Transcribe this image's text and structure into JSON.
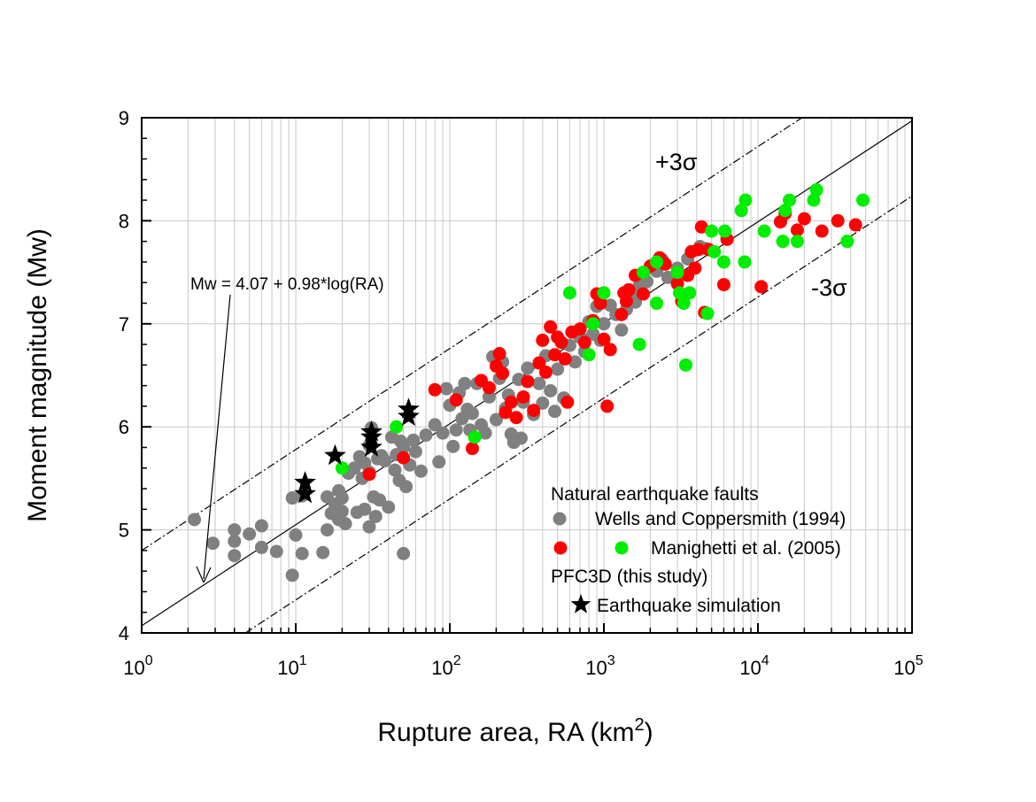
{
  "chart_data": {
    "type": "scatter",
    "xscale": "log",
    "xlim": [
      1,
      100000
    ],
    "ylim": [
      4,
      9
    ],
    "xlabel": "Rupture area, RA (km",
    "xlabel_sup": "2",
    "xlabel_end": ")",
    "ylabel": "Moment magnitude (Mw)",
    "x_ticks": [
      "10",
      "10",
      "10",
      "10",
      "10",
      "10"
    ],
    "x_tick_exponents": [
      "0",
      "1",
      "2",
      "3",
      "4",
      "5"
    ],
    "y_ticks": [
      "4",
      "5",
      "6",
      "7",
      "8",
      "9"
    ],
    "grid": true,
    "legend_position": "bottom-right",
    "legend": {
      "header1": "Natural earthquake faults",
      "wells": "Wells and Coppersmith (1994)",
      "manighetti": "Manighetti et al. (2005)",
      "header2": "PFC3D (this study)",
      "pfc": "Earthquake simulation"
    },
    "annotations": {
      "equation": "Mw = 4.07 + 0.98*log(RA)",
      "plus_sigma": "+3σ",
      "minus_sigma": "-3σ"
    },
    "lines": {
      "fit": {
        "intercept": 4.07,
        "slope": 0.98
      },
      "upper": {
        "intercept": 4.8,
        "slope": 0.98
      },
      "lower": {
        "intercept": 3.34,
        "slope": 0.98
      }
    },
    "colors": {
      "wells": "#808080",
      "manighetti_red": "#ff0000",
      "manighetti_green": "#00ee00",
      "pfc": "#000000"
    },
    "series": [
      {
        "name": "Wells and Coppersmith (1994)",
        "marker": "circle",
        "color": "#808080",
        "points": [
          [
            2.2,
            5.1
          ],
          [
            2.9,
            4.87
          ],
          [
            4,
            4.75
          ],
          [
            4,
            4.89
          ],
          [
            4,
            5.0
          ],
          [
            5,
            4.96
          ],
          [
            6,
            4.83
          ],
          [
            6,
            5.04
          ],
          [
            7.5,
            4.79
          ],
          [
            9.5,
            4.56
          ],
          [
            10,
            4.95
          ],
          [
            9.5,
            5.31
          ],
          [
            11,
            4.77
          ],
          [
            11,
            5.33
          ],
          [
            15,
            4.78
          ],
          [
            16,
            5.0
          ],
          [
            16,
            5.32
          ],
          [
            17,
            5.16
          ],
          [
            18,
            5.25
          ],
          [
            19,
            5.1
          ],
          [
            19,
            5.38
          ],
          [
            20,
            5.18
          ],
          [
            20,
            5.31
          ],
          [
            21,
            5.06
          ],
          [
            22,
            5.55
          ],
          [
            24,
            5.6
          ],
          [
            25,
            5.17
          ],
          [
            26,
            5.71
          ],
          [
            27,
            5.5
          ],
          [
            28,
            5.2
          ],
          [
            28,
            5.65
          ],
          [
            30,
            5.03
          ],
          [
            30,
            5.56
          ],
          [
            30,
            5.82
          ],
          [
            31,
            5.99
          ],
          [
            32,
            5.32
          ],
          [
            33,
            5.13
          ],
          [
            34,
            5.69
          ],
          [
            35,
            5.29
          ],
          [
            36,
            5.72
          ],
          [
            38,
            5.67
          ],
          [
            40,
            5.22
          ],
          [
            42,
            5.9
          ],
          [
            44,
            5.58
          ],
          [
            45,
            5.73
          ],
          [
            47,
            5.48
          ],
          [
            48,
            5.86
          ],
          [
            50,
            4.77
          ],
          [
            50,
            5.8
          ],
          [
            52,
            5.42
          ],
          [
            55,
            5.63
          ],
          [
            58,
            5.87
          ],
          [
            60,
            5.76
          ],
          [
            65,
            5.57
          ],
          [
            70,
            5.92
          ],
          [
            80,
            6.02
          ],
          [
            85,
            5.66
          ],
          [
            90,
            5.94
          ],
          [
            95,
            6.37
          ],
          [
            100,
            6.21
          ],
          [
            105,
            5.81
          ],
          [
            110,
            5.97
          ],
          [
            115,
            6.33
          ],
          [
            120,
            6.08
          ],
          [
            125,
            6.42
          ],
          [
            130,
            6.17
          ],
          [
            135,
            5.97
          ],
          [
            140,
            6.13
          ],
          [
            150,
            6.42
          ],
          [
            160,
            6.02
          ],
          [
            170,
            5.94
          ],
          [
            180,
            6.29
          ],
          [
            190,
            6.68
          ],
          [
            200,
            6.07
          ],
          [
            210,
            6.47
          ],
          [
            220,
            6.63
          ],
          [
            230,
            6.18
          ],
          [
            240,
            6.31
          ],
          [
            250,
            5.93
          ],
          [
            260,
            5.85
          ],
          [
            280,
            6.46
          ],
          [
            290,
            5.89
          ],
          [
            300,
            6.24
          ],
          [
            320,
            6.57
          ],
          [
            350,
            6.12
          ],
          [
            380,
            6.42
          ],
          [
            400,
            6.23
          ],
          [
            420,
            6.69
          ],
          [
            450,
            6.35
          ],
          [
            480,
            6.15
          ],
          [
            500,
            6.56
          ],
          [
            550,
            6.28
          ],
          [
            600,
            6.79
          ],
          [
            650,
            6.63
          ],
          [
            700,
            6.87
          ],
          [
            750,
            6.73
          ],
          [
            800,
            7.02
          ],
          [
            850,
            6.9
          ],
          [
            900,
            7.17
          ],
          [
            950,
            6.84
          ],
          [
            1000,
            7.0
          ],
          [
            1100,
            7.18
          ],
          [
            1200,
            7.09
          ],
          [
            1300,
            6.94
          ],
          [
            1400,
            7.14
          ],
          [
            1500,
            7.29
          ],
          [
            1600,
            7.21
          ],
          [
            1700,
            7.37
          ],
          [
            1800,
            7.49
          ],
          [
            1900,
            7.41
          ],
          [
            2000,
            7.55
          ],
          [
            2200,
            7.51
          ],
          [
            2400,
            7.62
          ],
          [
            2600,
            7.45
          ],
          [
            3000,
            7.54
          ],
          [
            3500,
            7.63
          ],
          [
            4200,
            7.75
          ],
          [
            4600,
            7.73
          ]
        ]
      },
      {
        "name": "Manighetti et al. (2005)",
        "marker": "circle",
        "color": "#ff0000",
        "points": [
          [
            30,
            5.54
          ],
          [
            50,
            5.7
          ],
          [
            80,
            6.36
          ],
          [
            110,
            6.26
          ],
          [
            140,
            5.79
          ],
          [
            160,
            6.45
          ],
          [
            180,
            6.38
          ],
          [
            200,
            6.59
          ],
          [
            210,
            6.71
          ],
          [
            220,
            6.52
          ],
          [
            230,
            6.14
          ],
          [
            250,
            6.24
          ],
          [
            270,
            6.09
          ],
          [
            300,
            6.29
          ],
          [
            320,
            6.44
          ],
          [
            350,
            6.16
          ],
          [
            380,
            6.62
          ],
          [
            400,
            6.84
          ],
          [
            420,
            6.53
          ],
          [
            450,
            6.97
          ],
          [
            480,
            6.7
          ],
          [
            500,
            6.87
          ],
          [
            530,
            6.82
          ],
          [
            560,
            6.66
          ],
          [
            580,
            6.24
          ],
          [
            620,
            6.92
          ],
          [
            700,
            6.95
          ],
          [
            750,
            6.82
          ],
          [
            850,
            7.03
          ],
          [
            900,
            7.29
          ],
          [
            950,
            7.2
          ],
          [
            1000,
            6.85
          ],
          [
            1050,
            6.2
          ],
          [
            1100,
            6.75
          ],
          [
            1300,
            7.09
          ],
          [
            1350,
            7.3
          ],
          [
            1400,
            7.22
          ],
          [
            1450,
            7.33
          ],
          [
            1600,
            7.47
          ],
          [
            1800,
            7.29
          ],
          [
            2000,
            7.56
          ],
          [
            2300,
            7.64
          ],
          [
            2500,
            7.58
          ],
          [
            3000,
            7.39
          ],
          [
            3200,
            7.22
          ],
          [
            3500,
            7.47
          ],
          [
            3700,
            7.7
          ],
          [
            3900,
            7.54
          ],
          [
            4100,
            7.72
          ],
          [
            4300,
            7.94
          ],
          [
            4500,
            7.11
          ],
          [
            4800,
            7.72
          ],
          [
            6000,
            7.38
          ],
          [
            6300,
            7.82
          ],
          [
            10500,
            7.36
          ],
          [
            14000,
            7.99
          ],
          [
            15000,
            8.07
          ],
          [
            18000,
            7.91
          ],
          [
            20000,
            8.02
          ],
          [
            26000,
            7.9
          ],
          [
            33000,
            8.0
          ],
          [
            43000,
            7.96
          ]
        ]
      },
      {
        "name": "Manighetti et al. (2005)",
        "marker": "circle",
        "color": "#00ee00",
        "points": [
          [
            20,
            5.6
          ],
          [
            45,
            6.0
          ],
          [
            145,
            5.9
          ],
          [
            600,
            7.3
          ],
          [
            800,
            6.7
          ],
          [
            850,
            7.0
          ],
          [
            1000,
            7.3
          ],
          [
            1700,
            6.8
          ],
          [
            1800,
            7.5
          ],
          [
            2200,
            7.6
          ],
          [
            2200,
            7.2
          ],
          [
            3000,
            7.5
          ],
          [
            3100,
            7.3
          ],
          [
            3300,
            7.2
          ],
          [
            3400,
            6.6
          ],
          [
            3600,
            7.3
          ],
          [
            4700,
            7.1
          ],
          [
            5000,
            7.9
          ],
          [
            5200,
            7.7
          ],
          [
            6000,
            7.6
          ],
          [
            6100,
            7.9
          ],
          [
            7800,
            8.1
          ],
          [
            8200,
            7.6
          ],
          [
            8300,
            8.2
          ],
          [
            11000,
            7.9
          ],
          [
            14500,
            7.8
          ],
          [
            15000,
            8.1
          ],
          [
            16000,
            8.2
          ],
          [
            18000,
            7.8
          ],
          [
            23000,
            8.2
          ],
          [
            24000,
            8.3
          ],
          [
            38000,
            7.8
          ],
          [
            48000,
            8.2
          ]
        ]
      },
      {
        "name": "Earthquake simulation",
        "marker": "star",
        "color": "#000000",
        "points": [
          [
            11.5,
            5.35
          ],
          [
            11.5,
            5.46
          ],
          [
            18,
            5.72
          ],
          [
            31,
            5.8
          ],
          [
            31,
            5.9
          ],
          [
            31,
            5.95
          ],
          [
            54,
            6.1
          ],
          [
            54,
            6.17
          ]
        ]
      }
    ]
  }
}
